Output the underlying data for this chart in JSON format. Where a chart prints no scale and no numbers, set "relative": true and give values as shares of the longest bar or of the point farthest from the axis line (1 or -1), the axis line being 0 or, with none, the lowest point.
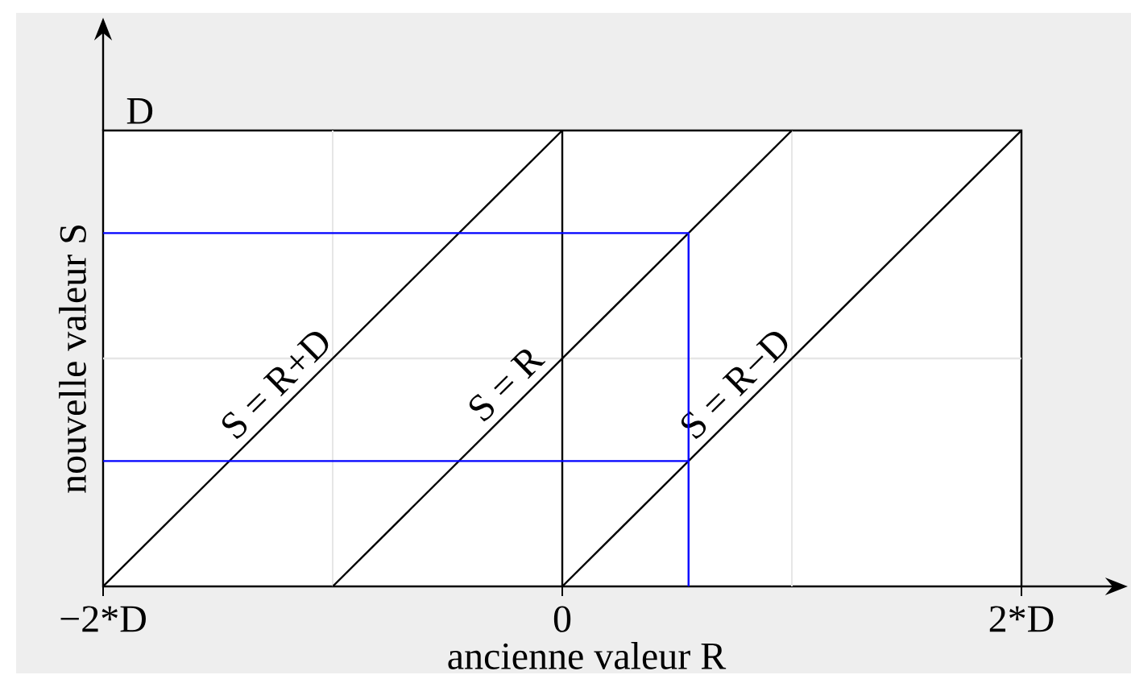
{
  "chart_data": {
    "type": "line",
    "relative": true,
    "xlabel": "ancienne valeur R",
    "ylabel": "nouvelle valeur S",
    "annotations": [
      "D"
    ],
    "xlim": [
      -2,
      2
    ],
    "xticks": [
      {
        "value": -2,
        "label": "−2*D"
      },
      {
        "value": -1,
        "label": null
      },
      0,
      {
        "value": 1,
        "label": null
      },
      {
        "value": 2,
        "label": "2*D"
      }
    ],
    "grid": "x",
    "marker": "none",
    "series": [
      {
        "name": "S = R+D",
        "color": "#000000",
        "x": [
          -2,
          0
        ],
        "values": [
          0,
          1
        ]
      },
      {
        "name": "S = R",
        "color": "#000000",
        "x": [
          -1,
          1
        ],
        "values": [
          0,
          1
        ]
      },
      {
        "name": "S = R−D",
        "color": "#000000",
        "x": [
          0,
          2
        ],
        "values": [
          0,
          1
        ]
      },
      {
        "color": "#0000ff",
        "x": [
          -2,
          0.55,
          0.55
        ],
        "values": [
          0.775,
          0.775,
          0
        ]
      },
      {
        "color": "#0000ff",
        "x": [
          -2,
          0.55
        ],
        "values": [
          0.275,
          0.275
        ]
      }
    ],
    "ref_lines": [
      {
        "axis": "y",
        "value": 0.5,
        "color": "#e6e6e6"
      },
      {
        "axis": "x",
        "value": 0,
        "color": "#000000"
      }
    ]
  }
}
